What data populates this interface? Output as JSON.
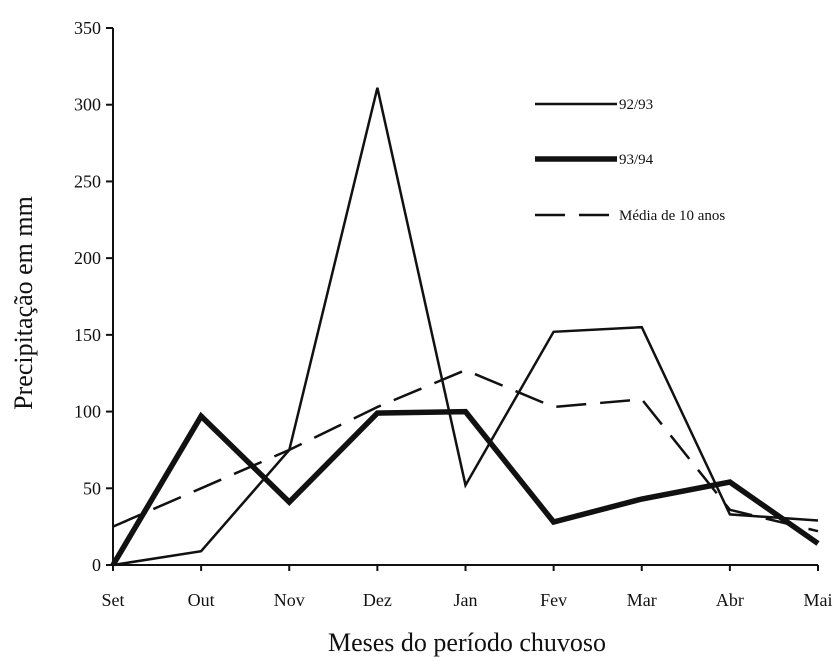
{
  "chart_data": {
    "type": "line",
    "title": "",
    "xlabel": "Meses do período chuvoso",
    "ylabel": "Precipitação em mm",
    "categories": [
      "Set",
      "Out",
      "Nov",
      "Dez",
      "Jan",
      "Fev",
      "Mar",
      "Abr",
      "Mai"
    ],
    "ylim": [
      0,
      350
    ],
    "yticks": [
      0,
      50,
      100,
      150,
      200,
      250,
      300,
      350
    ],
    "grid": false,
    "legend_position": "top-right",
    "series": [
      {
        "name": "92/93",
        "style": "thin-solid",
        "color": "#111111",
        "values": [
          0,
          9,
          75,
          311,
          52,
          152,
          155,
          33,
          29
        ]
      },
      {
        "name": "93/94",
        "style": "thick-solid",
        "color": "#111111",
        "values": [
          0,
          97,
          41,
          99,
          100,
          28,
          43,
          54,
          14
        ]
      },
      {
        "name": "Média de 10 anos",
        "style": "dashed",
        "color": "#111111",
        "values": [
          25,
          50,
          75,
          103,
          127,
          103,
          108,
          36,
          22
        ]
      }
    ]
  }
}
